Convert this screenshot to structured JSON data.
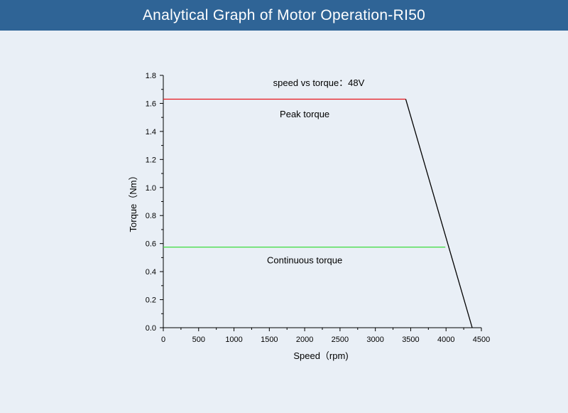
{
  "header": {
    "title": "Analytical Graph of Motor Operation-RI50"
  },
  "colors": {
    "title_bar": "#2f6496",
    "background": "#e9eff6",
    "peak": "#e8141c",
    "continuous": "#3ddc3d",
    "envelope": "#000000"
  },
  "chart_data": {
    "type": "line",
    "title": "speed vs torque：48V",
    "xlabel": "Speed（rpm)",
    "ylabel": "Torque（Nm）",
    "xlim": [
      0,
      4500
    ],
    "ylim": [
      0,
      1.8
    ],
    "x_ticks": [
      "0",
      "500",
      "1000",
      "1500",
      "2000",
      "2500",
      "3000",
      "3500",
      "4000",
      "4500"
    ],
    "y_ticks": [
      "0.0",
      "0.2",
      "0.4",
      "0.6",
      "0.8",
      "1.0",
      "1.2",
      "1.4",
      "1.6",
      "1.8"
    ],
    "grid": false,
    "series": [
      {
        "name": "Peak torque",
        "color": "#e8141c",
        "x": [
          0,
          3430
        ],
        "y": [
          1.63,
          1.63
        ]
      },
      {
        "name": "Continuous torque",
        "color": "#3ddc3d",
        "x": [
          0,
          3990
        ],
        "y": [
          0.575,
          0.575
        ]
      },
      {
        "name": "",
        "color": "#000000",
        "x": [
          3430,
          4370
        ],
        "y": [
          1.63,
          0
        ]
      }
    ],
    "annotations": [
      {
        "text": "Peak torque",
        "x": 2000,
        "y": 1.52
      },
      {
        "text": "Continuous torque",
        "x": 2000,
        "y": 0.48
      }
    ]
  }
}
